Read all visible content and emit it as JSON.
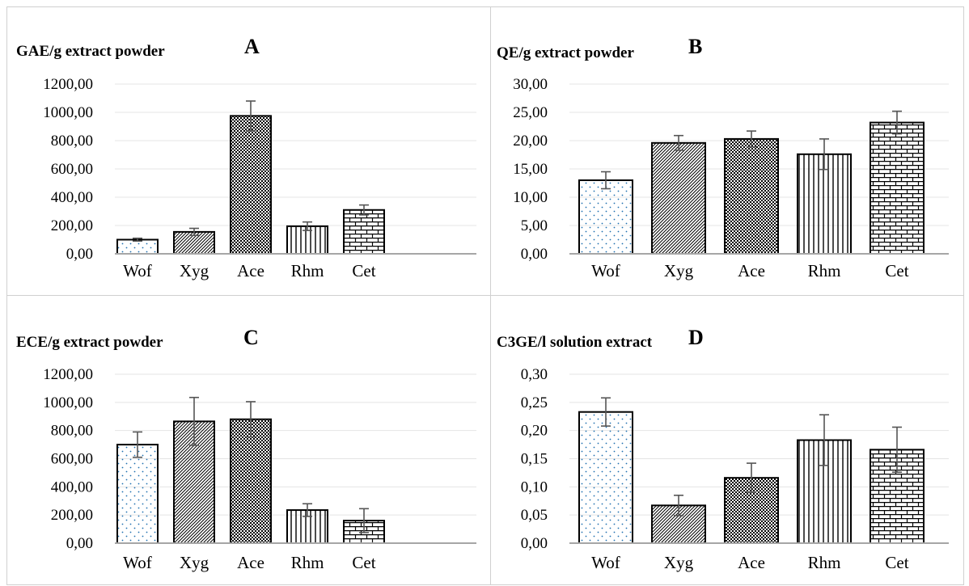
{
  "chart_data": [
    {
      "type": "bar",
      "panel": "A",
      "ylabel": "GAE/g extract powder",
      "categories": [
        "Wof",
        "Xyg",
        "Ace",
        "Rhm",
        "Cet"
      ],
      "values": [
        100,
        155,
        975,
        195,
        310
      ],
      "errors": [
        10,
        25,
        105,
        30,
        35
      ],
      "ylim": [
        0,
        1200
      ],
      "yticks": [
        "0,00",
        "200,00",
        "400,00",
        "600,00",
        "800,00",
        "1000,00",
        "1200,00"
      ],
      "patterns": [
        "dots",
        "diag",
        "checker",
        "vlines",
        "brick"
      ],
      "grid": true
    },
    {
      "type": "bar",
      "panel": "B",
      "ylabel": "QE/g extract powder",
      "categories": [
        "Wof",
        "Xyg",
        "Ace",
        "Rhm",
        "Cet"
      ],
      "values": [
        13.0,
        19.6,
        20.3,
        17.6,
        23.2
      ],
      "errors": [
        1.5,
        1.3,
        1.4,
        2.7,
        2.0
      ],
      "ylim": [
        0,
        30
      ],
      "yticks": [
        "0,00",
        "5,00",
        "10,00",
        "15,00",
        "20,00",
        "25,00",
        "30,00"
      ],
      "patterns": [
        "dots",
        "diag",
        "checker",
        "vlines",
        "brick"
      ],
      "grid": true
    },
    {
      "type": "bar",
      "panel": "C",
      "ylabel": "ECE/g extract powder",
      "categories": [
        "Wof",
        "Xyg",
        "Ace",
        "Rhm",
        "Cet"
      ],
      "values": [
        700,
        865,
        880,
        235,
        160
      ],
      "errors": [
        90,
        170,
        125,
        45,
        85
      ],
      "ylim": [
        0,
        1200
      ],
      "yticks": [
        "0,00",
        "200,00",
        "400,00",
        "600,00",
        "800,00",
        "1000,00",
        "1200,00"
      ],
      "patterns": [
        "dots",
        "diag",
        "checker",
        "vlines",
        "brick"
      ],
      "grid": true
    },
    {
      "type": "bar",
      "panel": "D",
      "ylabel": "C3GE/l solution extract",
      "categories": [
        "Wof",
        "Xyg",
        "Ace",
        "Rhm",
        "Cet"
      ],
      "values": [
        0.233,
        0.067,
        0.116,
        0.183,
        0.166
      ],
      "errors": [
        0.025,
        0.018,
        0.026,
        0.045,
        0.04
      ],
      "ylim": [
        0,
        0.3
      ],
      "yticks": [
        "0,00",
        "0,05",
        "0,10",
        "0,15",
        "0,20",
        "0,25",
        "0,30"
      ],
      "patterns": [
        "dots",
        "diag",
        "checker",
        "vlines",
        "brick"
      ],
      "grid": true
    }
  ],
  "colors": {
    "grid": "#e4e4e4",
    "axis": "#a6a6a6",
    "bar_outline": "#000000",
    "error_bar": "#555555",
    "dots": "#1f6fb0",
    "hatch": "#000000"
  }
}
